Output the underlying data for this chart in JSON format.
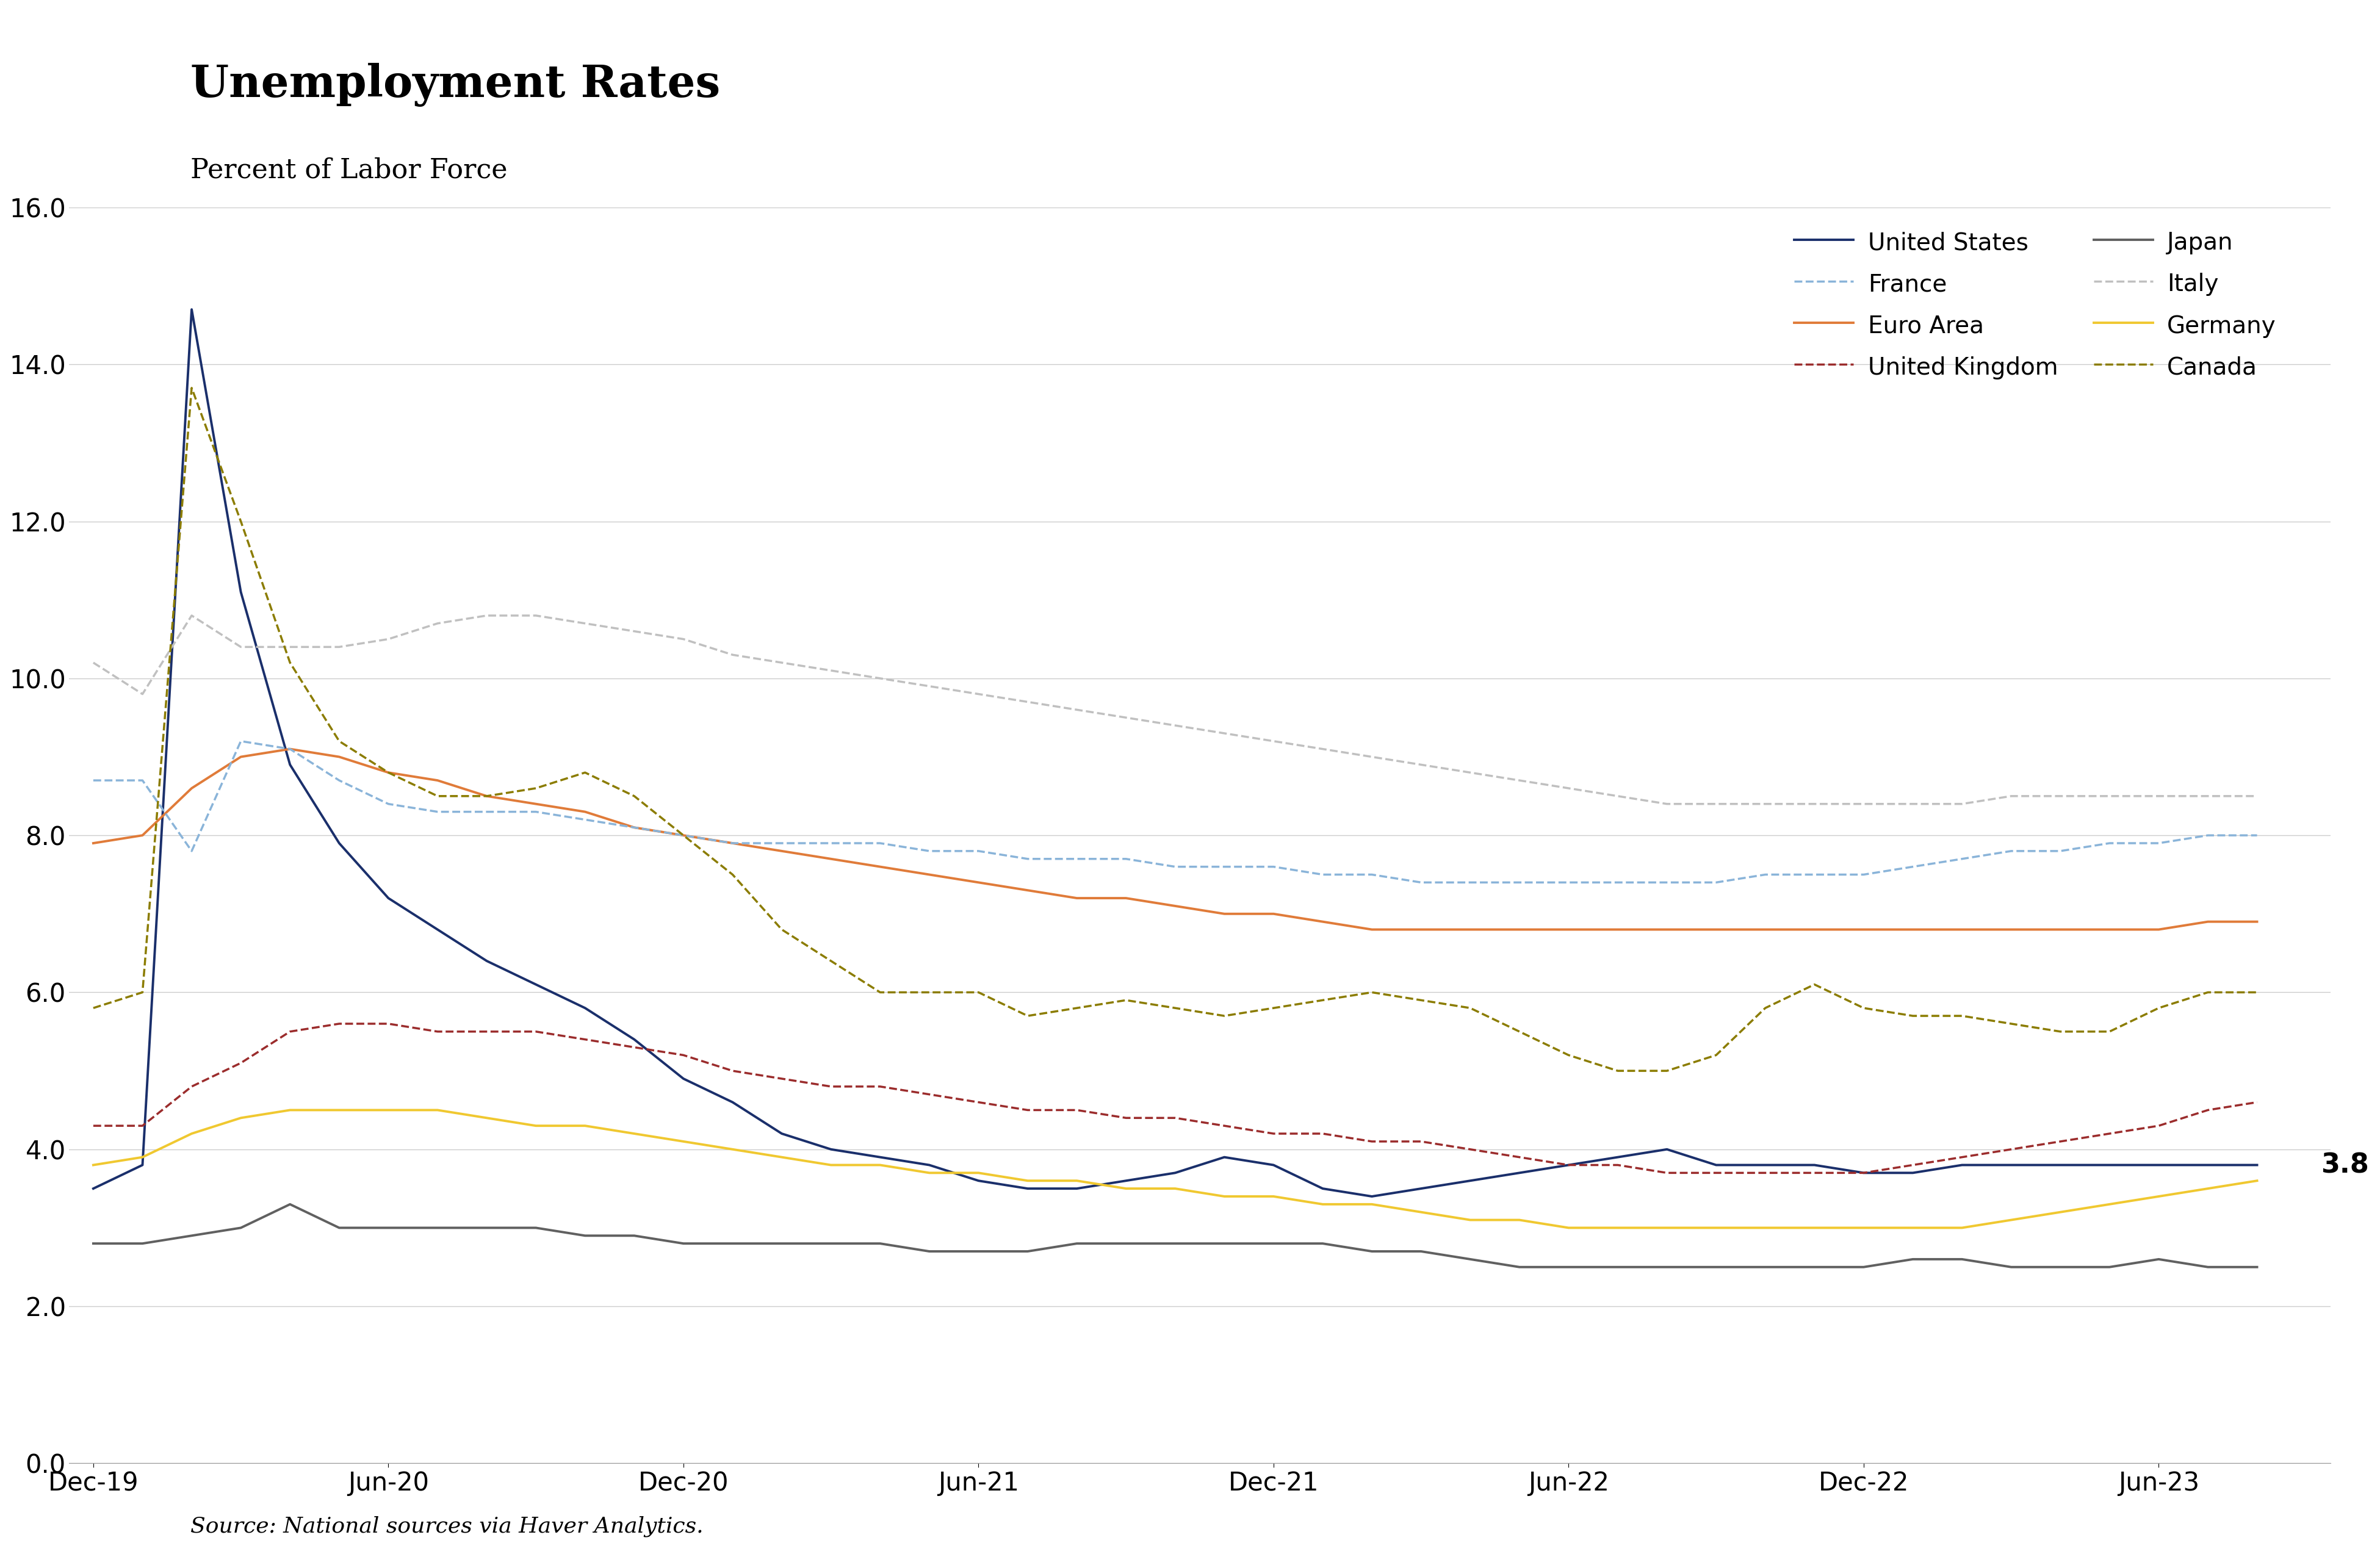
{
  "title": "Unemployment Rates",
  "subtitle": "Percent of Labor Force",
  "source": "Source: National sources via Haver Analytics.",
  "ylim": [
    0.0,
    16.0
  ],
  "yticks": [
    0.0,
    2.0,
    4.0,
    6.0,
    8.0,
    10.0,
    12.0,
    14.0,
    16.0
  ],
  "xtick_labels": [
    "Dec-19",
    "Jun-20",
    "Dec-20",
    "Jun-21",
    "Dec-21",
    "Jun-22",
    "Dec-22",
    "Jun-23"
  ],
  "annotation": "3.8",
  "series": {
    "United States": {
      "color": "#1a2f6b",
      "linestyle": "solid",
      "linewidth": 2.8,
      "data": [
        3.5,
        3.8,
        14.7,
        11.1,
        8.9,
        7.9,
        7.2,
        6.8,
        6.4,
        6.1,
        5.8,
        5.4,
        4.9,
        4.6,
        4.2,
        4.0,
        3.9,
        3.8,
        3.6,
        3.5,
        3.5,
        3.6,
        3.7,
        3.9,
        3.8,
        3.5,
        3.4,
        3.5,
        3.6,
        3.7,
        3.8,
        3.9,
        4.0,
        3.8,
        3.8,
        3.8,
        3.7,
        3.7,
        3.8,
        3.8,
        3.8,
        3.8,
        3.8,
        3.8,
        3.8
      ]
    },
    "Euro Area": {
      "color": "#e07b39",
      "linestyle": "solid",
      "linewidth": 2.8,
      "data": [
        7.9,
        8.0,
        8.6,
        9.0,
        9.1,
        9.0,
        8.8,
        8.7,
        8.5,
        8.4,
        8.3,
        8.1,
        8.0,
        7.9,
        7.8,
        7.7,
        7.6,
        7.5,
        7.4,
        7.3,
        7.2,
        7.2,
        7.1,
        7.0,
        7.0,
        6.9,
        6.8,
        6.8,
        6.8,
        6.8,
        6.8,
        6.8,
        6.8,
        6.8,
        6.8,
        6.8,
        6.8,
        6.8,
        6.8,
        6.8,
        6.8,
        6.8,
        6.8,
        6.9,
        6.9
      ]
    },
    "Japan": {
      "color": "#606060",
      "linestyle": "solid",
      "linewidth": 2.8,
      "data": [
        2.8,
        2.8,
        2.9,
        3.0,
        3.3,
        3.0,
        3.0,
        3.0,
        3.0,
        3.0,
        2.9,
        2.9,
        2.8,
        2.8,
        2.8,
        2.8,
        2.8,
        2.7,
        2.7,
        2.7,
        2.8,
        2.8,
        2.8,
        2.8,
        2.8,
        2.8,
        2.7,
        2.7,
        2.6,
        2.5,
        2.5,
        2.5,
        2.5,
        2.5,
        2.5,
        2.5,
        2.5,
        2.6,
        2.6,
        2.5,
        2.5,
        2.5,
        2.6,
        2.5,
        2.5
      ]
    },
    "Germany": {
      "color": "#f0c830",
      "linestyle": "solid",
      "linewidth": 2.8,
      "data": [
        3.8,
        3.9,
        4.2,
        4.4,
        4.5,
        4.5,
        4.5,
        4.5,
        4.4,
        4.3,
        4.3,
        4.2,
        4.1,
        4.0,
        3.9,
        3.8,
        3.8,
        3.7,
        3.7,
        3.6,
        3.6,
        3.5,
        3.5,
        3.4,
        3.4,
        3.3,
        3.3,
        3.2,
        3.1,
        3.1,
        3.0,
        3.0,
        3.0,
        3.0,
        3.0,
        3.0,
        3.0,
        3.0,
        3.0,
        3.1,
        3.2,
        3.3,
        3.4,
        3.5,
        3.6
      ]
    },
    "France": {
      "color": "#8ab4d9",
      "linestyle": "dashed",
      "linewidth": 2.5,
      "data": [
        8.7,
        8.7,
        7.8,
        9.2,
        9.1,
        8.7,
        8.4,
        8.3,
        8.3,
        8.3,
        8.2,
        8.1,
        8.0,
        7.9,
        7.9,
        7.9,
        7.9,
        7.8,
        7.8,
        7.7,
        7.7,
        7.7,
        7.6,
        7.6,
        7.6,
        7.5,
        7.5,
        7.4,
        7.4,
        7.4,
        7.4,
        7.4,
        7.4,
        7.4,
        7.5,
        7.5,
        7.5,
        7.6,
        7.7,
        7.8,
        7.8,
        7.9,
        7.9,
        8.0,
        8.0
      ]
    },
    "United Kingdom": {
      "color": "#9b2c2c",
      "linestyle": "dashed",
      "linewidth": 2.5,
      "data": [
        4.3,
        4.3,
        4.8,
        5.1,
        5.5,
        5.6,
        5.6,
        5.5,
        5.5,
        5.5,
        5.4,
        5.3,
        5.2,
        5.0,
        4.9,
        4.8,
        4.8,
        4.7,
        4.6,
        4.5,
        4.5,
        4.4,
        4.4,
        4.3,
        4.2,
        4.2,
        4.1,
        4.1,
        4.0,
        3.9,
        3.8,
        3.8,
        3.7,
        3.7,
        3.7,
        3.7,
        3.7,
        3.8,
        3.9,
        4.0,
        4.1,
        4.2,
        4.3,
        4.5,
        4.6
      ]
    },
    "Italy": {
      "color": "#c0c0c0",
      "linestyle": "dashed",
      "linewidth": 2.5,
      "data": [
        10.2,
        9.8,
        10.8,
        10.4,
        10.4,
        10.4,
        10.5,
        10.7,
        10.8,
        10.8,
        10.7,
        10.6,
        10.5,
        10.3,
        10.2,
        10.1,
        10.0,
        9.9,
        9.8,
        9.7,
        9.6,
        9.5,
        9.4,
        9.3,
        9.2,
        9.1,
        9.0,
        8.9,
        8.8,
        8.7,
        8.6,
        8.5,
        8.4,
        8.4,
        8.4,
        8.4,
        8.4,
        8.4,
        8.4,
        8.5,
        8.5,
        8.5,
        8.5,
        8.5,
        8.5
      ]
    },
    "Canada": {
      "color": "#8b7c00",
      "linestyle": "dashed",
      "linewidth": 2.5,
      "data": [
        5.8,
        6.0,
        13.7,
        12.0,
        10.2,
        9.2,
        8.8,
        8.5,
        8.5,
        8.6,
        8.8,
        8.5,
        8.0,
        7.5,
        6.8,
        6.4,
        6.0,
        6.0,
        6.0,
        5.7,
        5.8,
        5.9,
        5.8,
        5.7,
        5.8,
        5.9,
        6.0,
        5.9,
        5.8,
        5.5,
        5.2,
        5.0,
        5.0,
        5.2,
        5.8,
        6.1,
        5.8,
        5.7,
        5.7,
        5.6,
        5.5,
        5.5,
        5.8,
        6.0,
        6.0
      ]
    }
  },
  "background_color": "#ffffff",
  "grid_color": "#cccccc",
  "title_fontsize": 52,
  "subtitle_fontsize": 32,
  "tick_fontsize": 30,
  "legend_fontsize": 28,
  "source_fontsize": 26,
  "annotation_fontsize": 32
}
